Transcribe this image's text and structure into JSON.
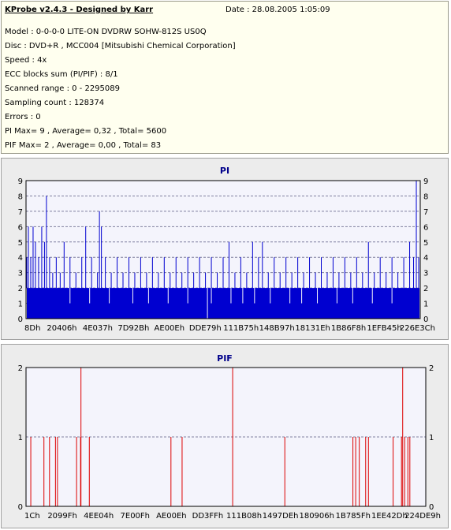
{
  "info": {
    "title": "KProbe v2.4.3 - Designed by Karr",
    "date": "Date : 28.08.2005 1:05:09",
    "lines": [
      "Model : 0-0-0-0 LITE-ON DVDRW SOHW-812S  US0Q",
      "Disc : DVD+R , MCC004 [Mitsubishi Chemical Corporation]",
      "Speed : 4x",
      "ECC blocks sum (PI/PIF) : 8/1",
      "Scanned range : 0 - 2295089",
      "Sampling count : 128374",
      "Errors : 0",
      "PI Max= 9 , Average= 0,32 , Total= 5600",
      "PIF Max= 2 , Average= 0,00 , Total= 83"
    ]
  },
  "chart_data": [
    {
      "type": "bar",
      "title": "PI",
      "color": "#0000d0",
      "ylim": [
        0,
        9
      ],
      "y_ticks": [
        0,
        1,
        2,
        3,
        4,
        5,
        6,
        7,
        8,
        9
      ],
      "x_tick_labels": [
        "8Dh",
        "20406h",
        "4E037h",
        "7D92Bh",
        "AE00Eh",
        "DDE79h",
        "111B75h",
        "148B97h",
        "18131Eh",
        "1B86F8h",
        "1EFB45h",
        "226E3Ch"
      ],
      "grid": "horizontal dashed",
      "baseline": 2,
      "peaks": [
        {
          "x": 0.0,
          "y": 4
        },
        {
          "x": 0.004,
          "y": 6
        },
        {
          "x": 0.01,
          "y": 4
        },
        {
          "x": 0.016,
          "y": 6
        },
        {
          "x": 0.022,
          "y": 5
        },
        {
          "x": 0.03,
          "y": 4
        },
        {
          "x": 0.038,
          "y": 6
        },
        {
          "x": 0.045,
          "y": 5
        },
        {
          "x": 0.05,
          "y": 8
        },
        {
          "x": 0.058,
          "y": 4
        },
        {
          "x": 0.066,
          "y": 3
        },
        {
          "x": 0.075,
          "y": 4
        },
        {
          "x": 0.085,
          "y": 3
        },
        {
          "x": 0.095,
          "y": 5
        },
        {
          "x": 0.11,
          "y": 4
        },
        {
          "x": 0.125,
          "y": 3
        },
        {
          "x": 0.14,
          "y": 4
        },
        {
          "x": 0.15,
          "y": 6
        },
        {
          "x": 0.165,
          "y": 4
        },
        {
          "x": 0.18,
          "y": 3
        },
        {
          "x": 0.185,
          "y": 7
        },
        {
          "x": 0.19,
          "y": 6
        },
        {
          "x": 0.2,
          "y": 4
        },
        {
          "x": 0.215,
          "y": 3
        },
        {
          "x": 0.23,
          "y": 4
        },
        {
          "x": 0.245,
          "y": 3
        },
        {
          "x": 0.26,
          "y": 4
        },
        {
          "x": 0.275,
          "y": 3
        },
        {
          "x": 0.29,
          "y": 4
        },
        {
          "x": 0.305,
          "y": 3
        },
        {
          "x": 0.32,
          "y": 4
        },
        {
          "x": 0.335,
          "y": 3
        },
        {
          "x": 0.35,
          "y": 4
        },
        {
          "x": 0.365,
          "y": 3
        },
        {
          "x": 0.38,
          "y": 4
        },
        {
          "x": 0.395,
          "y": 3
        },
        {
          "x": 0.41,
          "y": 4
        },
        {
          "x": 0.425,
          "y": 3
        },
        {
          "x": 0.44,
          "y": 4
        },
        {
          "x": 0.455,
          "y": 3
        },
        {
          "x": 0.47,
          "y": 4
        },
        {
          "x": 0.485,
          "y": 3
        },
        {
          "x": 0.5,
          "y": 4
        },
        {
          "x": 0.515,
          "y": 5
        },
        {
          "x": 0.53,
          "y": 3
        },
        {
          "x": 0.545,
          "y": 4
        },
        {
          "x": 0.56,
          "y": 3
        },
        {
          "x": 0.575,
          "y": 5
        },
        {
          "x": 0.59,
          "y": 4
        },
        {
          "x": 0.6,
          "y": 5
        },
        {
          "x": 0.615,
          "y": 3
        },
        {
          "x": 0.63,
          "y": 4
        },
        {
          "x": 0.645,
          "y": 3
        },
        {
          "x": 0.66,
          "y": 4
        },
        {
          "x": 0.675,
          "y": 3
        },
        {
          "x": 0.69,
          "y": 4
        },
        {
          "x": 0.705,
          "y": 3
        },
        {
          "x": 0.72,
          "y": 4
        },
        {
          "x": 0.735,
          "y": 3
        },
        {
          "x": 0.75,
          "y": 4
        },
        {
          "x": 0.765,
          "y": 3
        },
        {
          "x": 0.78,
          "y": 4
        },
        {
          "x": 0.795,
          "y": 3
        },
        {
          "x": 0.81,
          "y": 4
        },
        {
          "x": 0.825,
          "y": 3
        },
        {
          "x": 0.84,
          "y": 4
        },
        {
          "x": 0.855,
          "y": 3
        },
        {
          "x": 0.87,
          "y": 5
        },
        {
          "x": 0.885,
          "y": 3
        },
        {
          "x": 0.9,
          "y": 4
        },
        {
          "x": 0.915,
          "y": 3
        },
        {
          "x": 0.93,
          "y": 4
        },
        {
          "x": 0.945,
          "y": 3
        },
        {
          "x": 0.96,
          "y": 4
        },
        {
          "x": 0.975,
          "y": 5
        },
        {
          "x": 0.985,
          "y": 4
        },
        {
          "x": 0.992,
          "y": 9
        },
        {
          "x": 0.998,
          "y": 4
        }
      ]
    },
    {
      "type": "bar",
      "title": "PIF",
      "color": "#dd0000",
      "ylim": [
        0,
        2
      ],
      "y_ticks": [
        0,
        1,
        2
      ],
      "x_tick_labels": [
        "1Ch",
        "2099Fh",
        "4EE04h",
        "7E00Fh",
        "AE00Eh",
        "DD3FFh",
        "111B08h",
        "1497DEh",
        "180906h",
        "1B785Fh",
        "1EE42Dh",
        "224DE9h"
      ],
      "grid": "horizontal dashed",
      "spikes": [
        {
          "x": 0.01,
          "y": 1
        },
        {
          "x": 0.043,
          "y": 1
        },
        {
          "x": 0.057,
          "y": 1
        },
        {
          "x": 0.072,
          "y": 1
        },
        {
          "x": 0.077,
          "y": 1
        },
        {
          "x": 0.125,
          "y": 1
        },
        {
          "x": 0.135,
          "y": 1
        },
        {
          "x": 0.136,
          "y": 2
        },
        {
          "x": 0.157,
          "y": 1
        },
        {
          "x": 0.362,
          "y": 1
        },
        {
          "x": 0.39,
          "y": 1
        },
        {
          "x": 0.517,
          "y": 2
        },
        {
          "x": 0.648,
          "y": 1
        },
        {
          "x": 0.819,
          "y": 1
        },
        {
          "x": 0.826,
          "y": 1
        },
        {
          "x": 0.835,
          "y": 1
        },
        {
          "x": 0.851,
          "y": 1
        },
        {
          "x": 0.858,
          "y": 1
        },
        {
          "x": 0.92,
          "y": 1
        },
        {
          "x": 0.941,
          "y": 1
        },
        {
          "x": 0.944,
          "y": 2
        },
        {
          "x": 0.949,
          "y": 1
        },
        {
          "x": 0.957,
          "y": 1
        },
        {
          "x": 0.962,
          "y": 1
        }
      ]
    }
  ]
}
